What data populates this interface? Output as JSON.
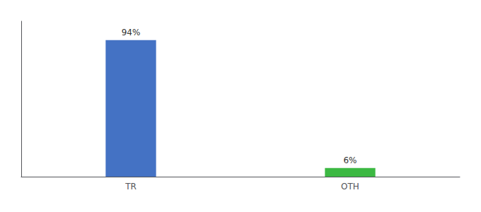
{
  "chart_data": {
    "type": "bar",
    "categories": [
      "TR",
      "OTH"
    ],
    "values": [
      94,
      6
    ],
    "value_labels": [
      "94%",
      "6%"
    ],
    "colors": [
      "#4472c4",
      "#3cb843"
    ],
    "ylim": [
      0,
      107
    ],
    "data_labels": true,
    "tick_labels": "x",
    "grid": false
  }
}
